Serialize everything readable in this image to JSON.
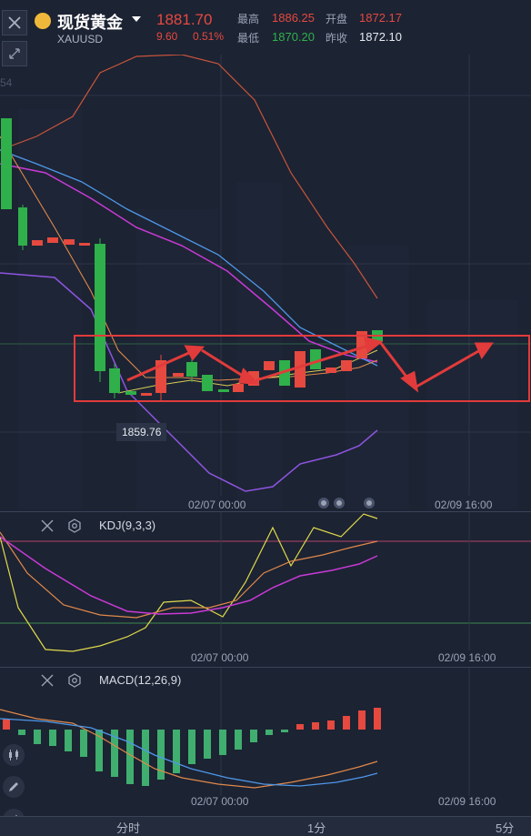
{
  "header": {
    "title": "现货黄金",
    "symbol": "XAUUSD",
    "price": "1881.70",
    "change": "9.60",
    "change_pct": "0.51%",
    "high_label": "最高",
    "high": "1886.25",
    "open_label": "开盘",
    "open": "1872.17",
    "low_label": "最低",
    "low": "1870.20",
    "prev_label": "昨收",
    "prev": "1872.10"
  },
  "main": {
    "side_label": "54",
    "low_tag": "1859.76",
    "time_left": "02/07 00:00",
    "time_right": "02/09 16:00"
  },
  "kdj": {
    "title": "KDJ(9,3,3)",
    "time_left": "02/07 00:00",
    "time_right": "02/09 16:00"
  },
  "macd": {
    "title": "MACD(12,26,9)",
    "time_left": "02/07 00:00",
    "time_right": "02/09 16:00"
  },
  "bottom_tabs": [
    "分时",
    "1分",
    "5分"
  ],
  "colors": {
    "up": "#e5493f",
    "down": "#2fb04a",
    "bg": "#1c2333",
    "frame": "#e23b3b"
  },
  "icons": [
    "close-icon",
    "shrink-icon",
    "gear-icon",
    "candle-icon",
    "pen-icon",
    "indicator-icon",
    "dropdown-icon",
    "gold-coin-icon"
  ]
}
